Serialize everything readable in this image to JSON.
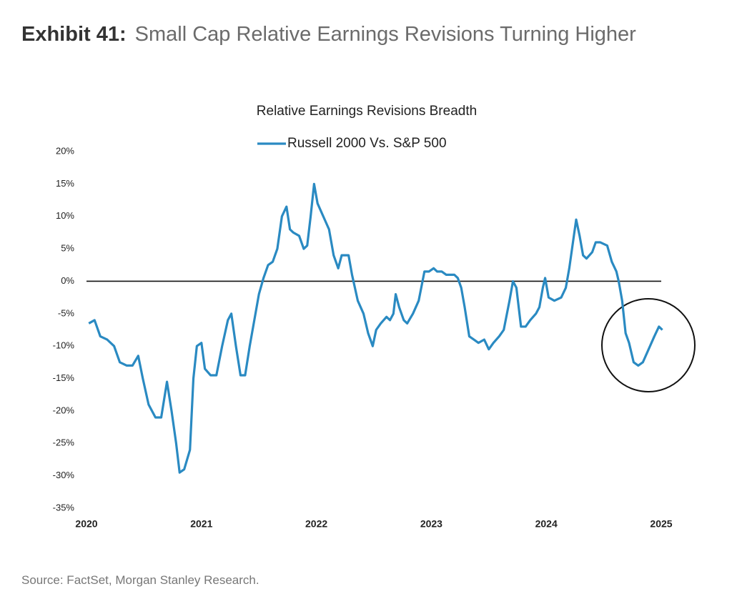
{
  "exhibit": "Exhibit 41:",
  "title": "Small Cap Relative Earnings Revisions Turning Higher",
  "source": "Source: FactSet, Morgan Stanley Research.",
  "chart_data": {
    "type": "line",
    "title": "Relative Earnings Revisions Breadth",
    "x": [
      2020.02,
      2020.07,
      2020.12,
      2020.18,
      2020.24,
      2020.29,
      2020.35,
      2020.4,
      2020.45,
      2020.49,
      2020.54,
      2020.6,
      2020.65,
      2020.7,
      2020.74,
      2020.78,
      2020.81,
      2020.85,
      2020.9,
      2020.93,
      2020.96,
      2021.0,
      2021.03,
      2021.08,
      2021.13,
      2021.18,
      2021.23,
      2021.26,
      2021.3,
      2021.34,
      2021.38,
      2021.42,
      2021.46,
      2021.5,
      2021.54,
      2021.58,
      2021.62,
      2021.66,
      2021.7,
      2021.74,
      2021.77,
      2021.8,
      2021.85,
      2021.89,
      2021.92,
      2021.95,
      2021.98,
      2022.01,
      2022.06,
      2022.11,
      2022.15,
      2022.19,
      2022.22,
      2022.28,
      2022.31,
      2022.36,
      2022.41,
      2022.45,
      2022.49,
      2022.52,
      2022.56,
      2022.61,
      2022.64,
      2022.67,
      2022.69,
      2022.72,
      2022.76,
      2022.79,
      2022.84,
      2022.89,
      2022.94,
      2022.98,
      2023.02,
      2023.05,
      2023.09,
      2023.13,
      2023.17,
      2023.2,
      2023.23,
      2023.26,
      2023.29,
      2023.33,
      2023.37,
      2023.41,
      2023.46,
      2023.5,
      2023.54,
      2023.59,
      2023.63,
      2023.68,
      2023.71,
      2023.74,
      2023.78,
      2023.82,
      2023.86,
      2023.91,
      2023.94,
      2023.97,
      2023.99,
      2024.02,
      2024.07,
      2024.13,
      2024.17,
      2024.2,
      2024.24,
      2024.26,
      2024.29,
      2024.32,
      2024.35,
      2024.4,
      2024.43,
      2024.47,
      2024.53,
      2024.57,
      2024.61,
      2024.63,
      2024.66,
      2024.69,
      2024.72,
      2024.76,
      2024.8,
      2024.84,
      2024.89,
      2024.94,
      2024.98,
      2025.01
    ],
    "series": [
      {
        "name": "Russell 2000 Vs. S&P 500",
        "color": "#2a8ac2",
        "values": [
          -6.5,
          -6,
          -8.5,
          -9,
          -10,
          -12.5,
          -13,
          -13,
          -11.5,
          -15,
          -19,
          -21,
          -21,
          -15.5,
          -20,
          -25,
          -29.5,
          -29,
          -26,
          -15,
          -10,
          -9.5,
          -13.5,
          -14.5,
          -14.5,
          -10,
          -6,
          -5,
          -10,
          -14.5,
          -14.5,
          -10,
          -6,
          -2,
          0.5,
          2.5,
          3,
          5,
          10,
          11.5,
          8,
          7.5,
          7,
          5,
          5.5,
          10,
          15,
          12,
          10,
          8,
          4,
          2,
          4,
          4,
          1,
          -3,
          -5,
          -8,
          -10,
          -7.5,
          -6.5,
          -5.5,
          -6,
          -5,
          -2,
          -4,
          -6,
          -6.5,
          -5,
          -3,
          1.5,
          1.5,
          2,
          1.5,
          1.5,
          1,
          1,
          1,
          0.5,
          -1,
          -4,
          -8.5,
          -9,
          -9.5,
          -9,
          -10.5,
          -9.5,
          -8.5,
          -7.5,
          -3,
          0,
          -1,
          -7,
          -7,
          -6,
          -5,
          -4,
          -1,
          0.5,
          -2.5,
          -3,
          -2.5,
          -1,
          2,
          7,
          9.5,
          7,
          4,
          3.5,
          4.5,
          6,
          6,
          5.5,
          3,
          1.5,
          0,
          -3,
          -8,
          -9.5,
          -12.5,
          -13,
          -12.5,
          -10.5,
          -8.5,
          -7,
          -7.5
        ]
      }
    ],
    "xlim": [
      2020,
      2025
    ],
    "xticks": [
      2020,
      2021,
      2022,
      2023,
      2024,
      2025
    ],
    "ylim": [
      -35,
      20
    ],
    "yticks": [
      {
        "value": -35,
        "label": "-35%"
      },
      {
        "value": -30,
        "label": "-30%"
      },
      {
        "value": -25,
        "label": "-25%"
      },
      {
        "value": -20,
        "label": "-20%"
      },
      {
        "value": -15,
        "label": "-15%"
      },
      {
        "value": -10,
        "label": "-10%"
      },
      {
        "value": -5,
        "label": "-5%"
      },
      {
        "value": 0,
        "label": "0%"
      },
      {
        "value": 5,
        "label": "5%"
      },
      {
        "value": 10,
        "label": "10%"
      },
      {
        "value": 15,
        "label": "15%"
      },
      {
        "value": 20,
        "label": "20%"
      }
    ],
    "legend": "top"
  }
}
